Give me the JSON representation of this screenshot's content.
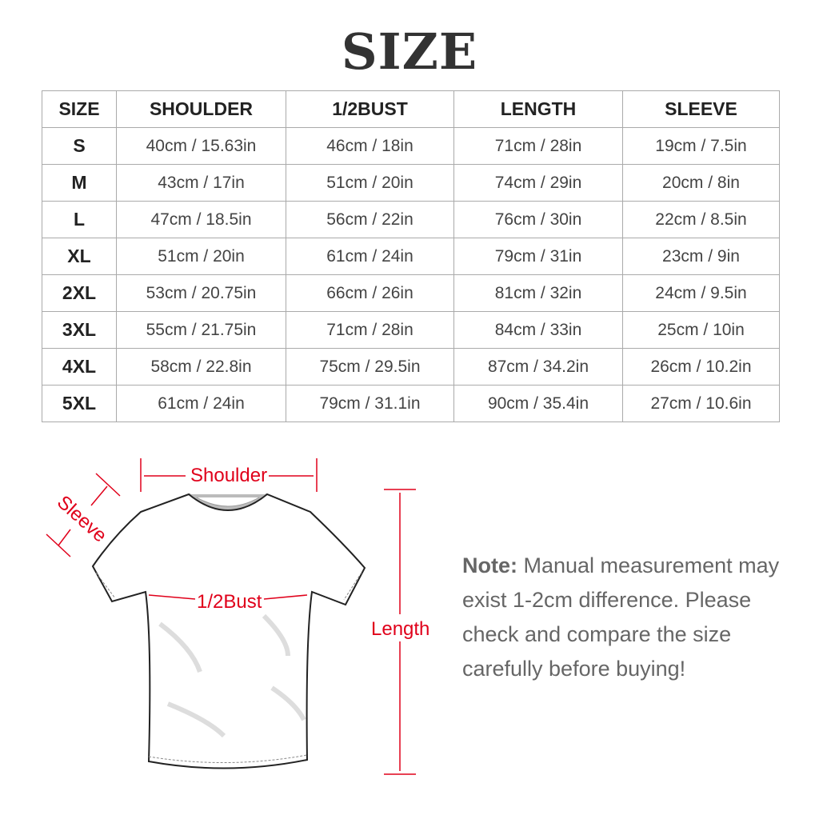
{
  "title": "SIZE",
  "table": {
    "headers": [
      "SIZE",
      "SHOULDER",
      "1/2BUST",
      "LENGTH",
      "SLEEVE"
    ],
    "rows": [
      [
        "S",
        "40cm / 15.63in",
        "46cm / 18in",
        "71cm / 28in",
        "19cm / 7.5in"
      ],
      [
        "M",
        "43cm / 17in",
        "51cm / 20in",
        "74cm / 29in",
        "20cm / 8in"
      ],
      [
        "L",
        "47cm / 18.5in",
        "56cm / 22in",
        "76cm / 30in",
        "22cm / 8.5in"
      ],
      [
        "XL",
        "51cm / 20in",
        "61cm / 24in",
        "79cm / 31in",
        "23cm / 9in"
      ],
      [
        "2XL",
        "53cm / 20.75in",
        "66cm / 26in",
        "81cm / 32in",
        "24cm / 9.5in"
      ],
      [
        "3XL",
        "55cm / 21.75in",
        "71cm / 28in",
        "84cm / 33in",
        "25cm / 10in"
      ],
      [
        "4XL",
        "58cm / 22.8in",
        "75cm / 29.5in",
        "87cm / 34.2in",
        "26cm / 10.2in"
      ],
      [
        "5XL",
        "61cm / 24in",
        "79cm / 31.1in",
        "90cm / 35.4in",
        "27cm / 10.6in"
      ]
    ]
  },
  "diagram": {
    "shoulder": "Shoulder",
    "sleeve": "Sleeve",
    "bust": "1/2Bust",
    "length": "Length",
    "accent": "#e0001a"
  },
  "note": {
    "label": "Note:",
    "text": " Manual measurement may exist 1-2cm difference. Please check and compare the size carefully before buying!"
  }
}
